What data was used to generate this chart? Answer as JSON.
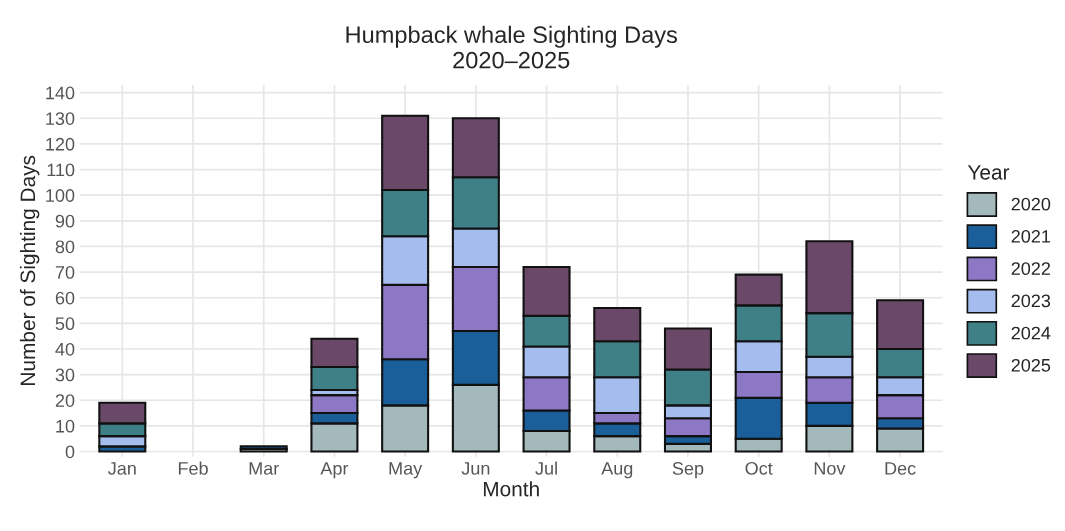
{
  "chart_data": {
    "type": "bar",
    "title": "Humpback whale Sighting Days\n2020–2025",
    "xlabel": "Month",
    "ylabel": "Number of Sighting Days",
    "legend_title": "Year",
    "categories": [
      "Jan",
      "Feb",
      "Mar",
      "Apr",
      "May",
      "Jun",
      "Jul",
      "Aug",
      "Sep",
      "Oct",
      "Nov",
      "Dec"
    ],
    "stacked": true,
    "series": [
      {
        "name": "2020",
        "color": "#a3b9bc",
        "values": [
          0,
          0,
          1,
          11,
          18,
          26,
          8,
          6,
          3,
          5,
          10,
          9
        ]
      },
      {
        "name": "2021",
        "color": "#1a5e9a",
        "values": [
          2,
          0,
          1,
          4,
          18,
          21,
          8,
          5,
          3,
          16,
          9,
          4
        ]
      },
      {
        "name": "2022",
        "color": "#8c78c4",
        "values": [
          0,
          0,
          0,
          7,
          29,
          25,
          13,
          4,
          7,
          10,
          10,
          9
        ]
      },
      {
        "name": "2023",
        "color": "#a4bdee",
        "values": [
          4,
          0,
          0,
          2,
          19,
          15,
          12,
          14,
          5,
          12,
          8,
          7
        ]
      },
      {
        "name": "2024",
        "color": "#3f7f86",
        "values": [
          5,
          0,
          0,
          9,
          18,
          20,
          12,
          14,
          14,
          14,
          17,
          11
        ]
      },
      {
        "name": "2025",
        "color": "#6a4868",
        "values": [
          8,
          0,
          0,
          11,
          29,
          23,
          19,
          13,
          16,
          12,
          28,
          19
        ]
      }
    ],
    "ylim": [
      -2,
      143
    ],
    "yticks": [
      0,
      10,
      20,
      30,
      40,
      50,
      60,
      70,
      80,
      90,
      100,
      110,
      120,
      130,
      140
    ],
    "grid": true,
    "legend": "right"
  }
}
